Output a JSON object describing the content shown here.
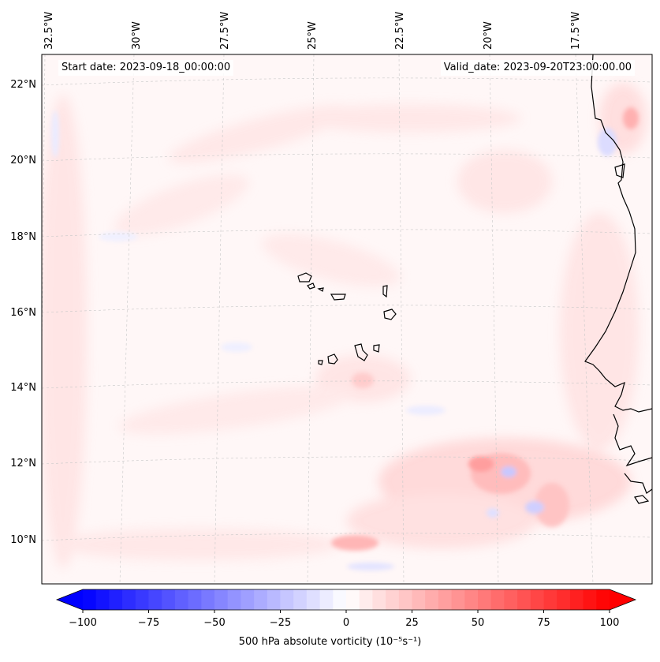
{
  "header": {
    "start_date": "Start date: 2023-09-18_00:00:00",
    "valid_date": "Valid_date: 2023-09-20T23:00:00.00"
  },
  "axes": {
    "lon_labels": [
      "32.5°W",
      "30°W",
      "27.5°W",
      "25°W",
      "22.5°W",
      "20°W",
      "17.5°W"
    ],
    "lat_labels": [
      "22°N",
      "20°N",
      "18°N",
      "16°N",
      "14°N",
      "12°N",
      "10°N"
    ]
  },
  "colorbar": {
    "title": "500 hPa absolute vorticity (10⁻⁵s⁻¹)",
    "ticks": [
      "−100",
      "−75",
      "−50",
      "−25",
      "0",
      "25",
      "50",
      "75",
      "100"
    ],
    "min": -100,
    "max": 100,
    "neg_color": "#0000ff",
    "pos_color": "#ff0000",
    "mid_color": "#ffffff"
  },
  "map": {
    "land_outline_color": "#000000",
    "background_tint": "#fff6f6",
    "grid": true
  }
}
